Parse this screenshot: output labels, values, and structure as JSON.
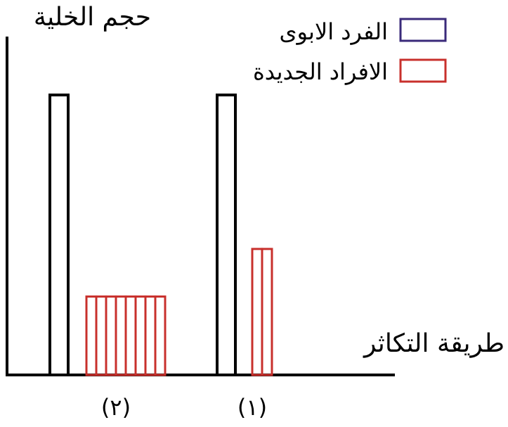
{
  "chart_data": {
    "type": "bar",
    "ylabel": "حجم الخلية",
    "xlabel": "طريقة التكاثر",
    "legend": {
      "placement": "top-right",
      "entries": [
        {
          "label": "الفرد الابوى",
          "color": "#3a2a7a"
        },
        {
          "label": "الافراد الجديدة",
          "color": "#c8302c"
        }
      ]
    },
    "groups": [
      {
        "label": "(١)",
        "parent_size": 100,
        "offspring_count": 2,
        "offspring_size": 45
      },
      {
        "label": "(٢)",
        "parent_size": 100,
        "offspring_count": 8,
        "offspring_size": 28
      }
    ],
    "colors": {
      "parent_bar": "#000000",
      "offspring_bar": "#c8302c",
      "axis": "#000000"
    },
    "grid": false
  }
}
